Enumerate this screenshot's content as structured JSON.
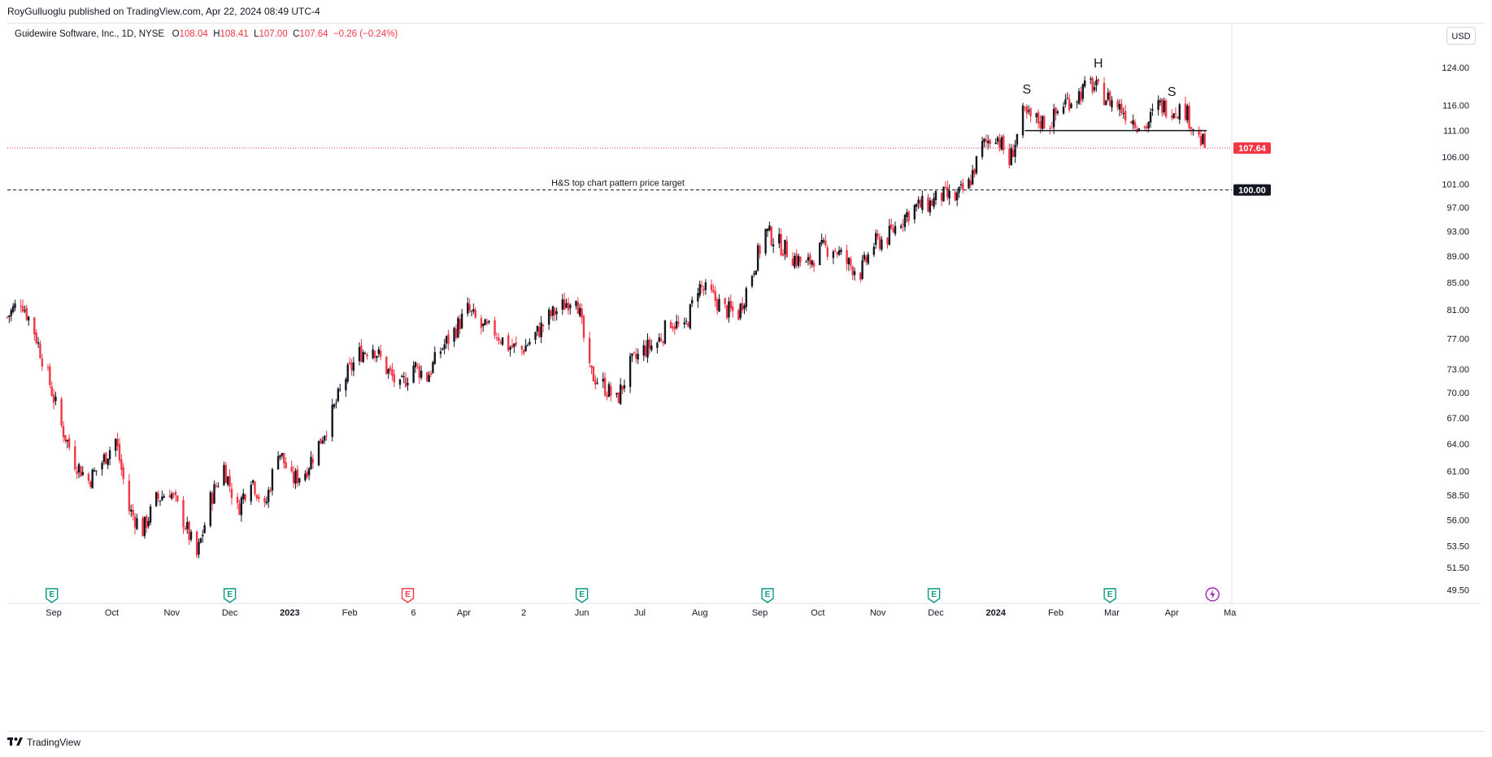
{
  "header": {
    "publisher_text": "RoyGulluoglu published on TradingView.com, Apr 22, 2024 08:49 UTC-4"
  },
  "legend": {
    "symbol": "Guidewire Software, Inc., 1D, NYSE",
    "open_label": "O",
    "open": "108.04",
    "high_label": "H",
    "high": "108.41",
    "low_label": "L",
    "low": "107.00",
    "close_label": "C",
    "close": "107.64",
    "change": "−0.26 (−0.24%)"
  },
  "currency_button": "USD",
  "footer": {
    "brand": "TradingView"
  },
  "colors": {
    "up": "#131722",
    "down": "#f23645",
    "last_price": "#f23645",
    "target": "#131722",
    "earnings": "#089981",
    "earnings_miss": "#f23645",
    "dividend_icon": "#9c27b0"
  },
  "icons": {
    "earnings": "E-badge-icon",
    "upcoming_event": "lightning-icon"
  },
  "chart_data": {
    "type": "candlestick",
    "title": "Guidewire Software, Inc., 1D, NYSE",
    "price_scale": "log",
    "ylim": [
      48.5,
      130
    ],
    "y_ticks": [
      "124.00",
      "116.00",
      "111.00",
      "106.00",
      "101.00",
      "97.00",
      "93.00",
      "89.00",
      "85.00",
      "81.00",
      "77.00",
      "73.00",
      "70.00",
      "67.00",
      "64.00",
      "61.00",
      "58.50",
      "56.00",
      "53.50",
      "51.50",
      "49.50"
    ],
    "x_ticks": [
      {
        "label": "Sep",
        "date": "2022-09-01",
        "bold": false
      },
      {
        "label": "Oct",
        "date": "2022-10-01",
        "bold": false
      },
      {
        "label": "Nov",
        "date": "2022-11-01",
        "bold": false
      },
      {
        "label": "Dec",
        "date": "2022-12-01",
        "bold": false
      },
      {
        "label": "2023",
        "date": "2023-01-01",
        "bold": true
      },
      {
        "label": "Feb",
        "date": "2023-02-01",
        "bold": false
      },
      {
        "label": "6",
        "date": "2023-03-06",
        "bold": false
      },
      {
        "label": "Apr",
        "date": "2023-04-01",
        "bold": false
      },
      {
        "label": "2",
        "date": "2023-05-02",
        "bold": false
      },
      {
        "label": "Jun",
        "date": "2023-06-01",
        "bold": false
      },
      {
        "label": "Jul",
        "date": "2023-07-01",
        "bold": false
      },
      {
        "label": "Aug",
        "date": "2023-08-01",
        "bold": false
      },
      {
        "label": "Sep",
        "date": "2023-09-01",
        "bold": false
      },
      {
        "label": "Oct",
        "date": "2023-10-01",
        "bold": false
      },
      {
        "label": "Nov",
        "date": "2023-11-01",
        "bold": false
      },
      {
        "label": "Dec",
        "date": "2023-12-01",
        "bold": false
      },
      {
        "label": "2024",
        "date": "2024-01-01",
        "bold": true
      },
      {
        "label": "Feb",
        "date": "2024-02-01",
        "bold": false
      },
      {
        "label": "Mar",
        "date": "2024-03-01",
        "bold": false
      },
      {
        "label": "Apr",
        "date": "2024-04-01",
        "bold": false
      },
      {
        "label": "Ma",
        "date": "2024-05-01",
        "bold": false
      }
    ],
    "x_range": [
      "2022-08-08",
      "2024-05-02"
    ],
    "last_price": {
      "value": 107.64,
      "label": "107.64"
    },
    "target_line": {
      "value": 100.0,
      "label": "100.00",
      "annotation": "H&S top chart pattern price target"
    },
    "neckline": {
      "value": 111.0,
      "from": "2024-01-16",
      "to": "2024-04-19"
    },
    "pattern_labels": [
      {
        "text": "S",
        "date": "2024-01-17",
        "price": 118.5
      },
      {
        "text": "H",
        "date": "2024-02-23",
        "price": 124.0
      },
      {
        "text": "S",
        "date": "2024-04-01",
        "price": 118.0
      }
    ],
    "earnings_events": [
      {
        "date": "2022-08-31",
        "miss": false
      },
      {
        "date": "2022-12-01",
        "miss": false
      },
      {
        "date": "2023-03-03",
        "miss": true
      },
      {
        "date": "2023-06-01",
        "miss": false
      },
      {
        "date": "2023-09-05",
        "miss": false
      },
      {
        "date": "2023-11-30",
        "miss": false
      },
      {
        "date": "2024-02-29",
        "miss": false
      }
    ],
    "upcoming_event": {
      "date": "2024-04-22"
    },
    "close_series": [
      [
        "2022-08-08",
        80.0
      ],
      [
        "2022-08-15",
        82.5
      ],
      [
        "2022-08-22",
        78.0
      ],
      [
        "2022-08-29",
        72.0
      ],
      [
        "2022-09-05",
        66.0
      ],
      [
        "2022-09-12",
        62.0
      ],
      [
        "2022-09-19",
        60.0
      ],
      [
        "2022-09-26",
        62.0
      ],
      [
        "2022-10-03",
        64.5
      ],
      [
        "2022-10-10",
        57.0
      ],
      [
        "2022-10-17",
        55.0
      ],
      [
        "2022-10-24",
        58.0
      ],
      [
        "2022-10-31",
        59.0
      ],
      [
        "2022-11-07",
        56.0
      ],
      [
        "2022-11-14",
        52.5
      ],
      [
        "2022-11-21",
        58.0
      ],
      [
        "2022-11-28",
        61.5
      ],
      [
        "2022-12-05",
        57.0
      ],
      [
        "2022-12-12",
        60.5
      ],
      [
        "2022-12-19",
        57.0
      ],
      [
        "2022-12-26",
        63.5
      ],
      [
        "2023-01-02",
        60.0
      ],
      [
        "2023-01-09",
        61.0
      ],
      [
        "2023-01-16",
        64.0
      ],
      [
        "2023-01-23",
        67.5
      ],
      [
        "2023-01-30",
        72.0
      ],
      [
        "2023-02-06",
        75.0
      ],
      [
        "2023-02-13",
        76.0
      ],
      [
        "2023-02-20",
        73.0
      ],
      [
        "2023-02-27",
        70.5
      ],
      [
        "2023-03-06",
        73.5
      ],
      [
        "2023-03-13",
        72.0
      ],
      [
        "2023-03-20",
        75.5
      ],
      [
        "2023-03-27",
        78.0
      ],
      [
        "2023-04-03",
        81.0
      ],
      [
        "2023-04-10",
        78.5
      ],
      [
        "2023-04-17",
        78.0
      ],
      [
        "2023-04-24",
        76.0
      ],
      [
        "2023-05-01",
        75.5
      ],
      [
        "2023-05-08",
        77.5
      ],
      [
        "2023-05-15",
        80.0
      ],
      [
        "2023-05-22",
        81.5
      ],
      [
        "2023-05-29",
        83.5
      ],
      [
        "2023-06-05",
        72.5
      ],
      [
        "2023-06-12",
        71.0
      ],
      [
        "2023-06-19",
        69.0
      ],
      [
        "2023-06-26",
        73.5
      ],
      [
        "2023-07-03",
        75.5
      ],
      [
        "2023-07-10",
        76.5
      ],
      [
        "2023-07-17",
        79.5
      ],
      [
        "2023-07-24",
        78.0
      ],
      [
        "2023-07-31",
        84.5
      ],
      [
        "2023-08-07",
        83.0
      ],
      [
        "2023-08-14",
        81.0
      ],
      [
        "2023-08-21",
        80.5
      ],
      [
        "2023-08-28",
        86.5
      ],
      [
        "2023-09-04",
        93.0
      ],
      [
        "2023-09-11",
        91.0
      ],
      [
        "2023-09-18",
        89.0
      ],
      [
        "2023-09-25",
        87.5
      ],
      [
        "2023-10-02",
        90.0
      ],
      [
        "2023-10-09",
        90.5
      ],
      [
        "2023-10-16",
        88.0
      ],
      [
        "2023-10-23",
        86.5
      ],
      [
        "2023-10-30",
        91.0
      ],
      [
        "2023-11-06",
        92.0
      ],
      [
        "2023-11-13",
        95.0
      ],
      [
        "2023-11-20",
        97.0
      ],
      [
        "2023-11-27",
        97.5
      ],
      [
        "2023-12-04",
        99.0
      ],
      [
        "2023-12-11",
        98.5
      ],
      [
        "2023-12-18",
        101.0
      ],
      [
        "2023-12-25",
        108.0
      ],
      [
        "2024-01-01",
        110.5
      ],
      [
        "2024-01-08",
        105.0
      ],
      [
        "2024-01-15",
        114.0
      ],
      [
        "2024-01-22",
        113.0
      ],
      [
        "2024-01-29",
        112.5
      ],
      [
        "2024-02-05",
        116.5
      ],
      [
        "2024-02-12",
        118.0
      ],
      [
        "2024-02-19",
        120.5
      ],
      [
        "2024-02-26",
        118.0
      ],
      [
        "2024-03-04",
        116.0
      ],
      [
        "2024-03-11",
        113.5
      ],
      [
        "2024-03-18",
        111.5
      ],
      [
        "2024-03-25",
        116.0
      ],
      [
        "2024-04-01",
        115.5
      ],
      [
        "2024-04-08",
        115.0
      ],
      [
        "2024-04-15",
        109.5
      ],
      [
        "2024-04-19",
        107.64
      ]
    ]
  }
}
